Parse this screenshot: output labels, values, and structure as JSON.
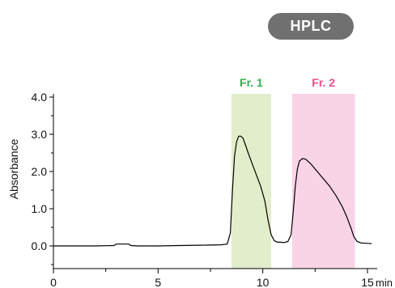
{
  "badge": {
    "label": "HPLC",
    "color": "#707070"
  },
  "chart_data": {
    "type": "line",
    "title": "",
    "xlabel": "",
    "x_unit_label": "min",
    "ylabel": "Absorbance",
    "xlim": [
      0,
      15.2
    ],
    "ylim": [
      -0.5,
      4.0
    ],
    "x_ticks": [
      0,
      5,
      10,
      15
    ],
    "x_tick_labels": [
      "0",
      "5",
      "10",
      "15"
    ],
    "y_ticks": [
      0.0,
      1.0,
      2.0,
      3.0,
      4.0
    ],
    "y_tick_labels": [
      "0.0",
      "1.0",
      "2.0",
      "3.0",
      "4.0"
    ],
    "grid": false,
    "fractions": [
      {
        "label": "Fr. 1",
        "start": 8.5,
        "end": 10.4,
        "fill": "#e2edcb",
        "text_color": "#2bb34b"
      },
      {
        "label": "Fr. 2",
        "start": 11.4,
        "end": 14.4,
        "fill": "#f9d3e6",
        "text_color": "#ee4c8a"
      }
    ],
    "series": [
      {
        "color": "#000000",
        "x": [
          0,
          1,
          2,
          2.9,
          3.0,
          3.1,
          3.6,
          3.7,
          4,
          5,
          6,
          7,
          8,
          8.3,
          8.45,
          8.55,
          8.65,
          8.75,
          8.85,
          8.95,
          9.05,
          9.15,
          9.3,
          9.5,
          9.7,
          9.9,
          10.1,
          10.25,
          10.4,
          10.55,
          10.7,
          10.85,
          11.0,
          11.2,
          11.35,
          11.45,
          11.55,
          11.65,
          11.75,
          11.9,
          12.05,
          12.3,
          12.6,
          12.9,
          13.2,
          13.5,
          13.8,
          14.0,
          14.2,
          14.35,
          14.5,
          14.7,
          15.0,
          15.2
        ],
        "y": [
          0.0,
          0.0,
          0.0,
          0.01,
          0.05,
          0.05,
          0.05,
          0.01,
          0.0,
          0.0,
          0.01,
          0.02,
          0.03,
          0.05,
          0.35,
          1.5,
          2.4,
          2.8,
          2.95,
          2.95,
          2.9,
          2.75,
          2.5,
          2.2,
          1.9,
          1.6,
          1.2,
          0.7,
          0.3,
          0.14,
          0.1,
          0.1,
          0.09,
          0.12,
          0.3,
          0.9,
          1.6,
          2.05,
          2.28,
          2.35,
          2.33,
          2.2,
          2.0,
          1.8,
          1.6,
          1.35,
          1.05,
          0.8,
          0.5,
          0.25,
          0.12,
          0.08,
          0.07,
          0.06
        ]
      }
    ]
  }
}
